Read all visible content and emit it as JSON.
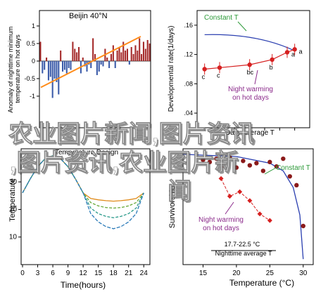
{
  "colors": {
    "bar": "#a52a2a",
    "bar_negative": "#3b5ba9",
    "trend": "#ff8c1a",
    "red_series": "#d62020",
    "blue_curve": "#2b3fb0",
    "green_annot": "#2e9a3a",
    "purple_annot": "#8b2b8b",
    "watermark": "#ffffff",
    "watermark_shadow": "#444444"
  },
  "watermark": {
    "line1": "农业图片新闻,图片资讯",
    "line2": ",图片资讯,农业图片新",
    "line3": "闻"
  },
  "chart_data": [
    {
      "type": "bar",
      "title": "Beijin 40°N",
      "ylabel": "Anomaly of nighttime minimum temperature on hot days",
      "xlabel": "",
      "x_ticks": [],
      "y_tick_labels": [
        "1",
        "0.5",
        "0",
        "-0.5",
        "-1"
      ],
      "ylim": [
        -1.2,
        1.15
      ],
      "values": [
        0.55,
        -0.35,
        -0.25,
        0.1,
        -0.55,
        -0.45,
        -1.05,
        -0.5,
        -0.6,
        -0.95,
        0.3,
        -0.3,
        -0.25,
        -0.35,
        -0.2,
        -0.25,
        0.55,
        0.35,
        0.25,
        0.4,
        -0.35,
        0.1,
        -0.15,
        -0.3,
        -0.1,
        -0.2,
        0.65,
        0.2,
        -0.4,
        -0.3,
        -0.1,
        -0.15,
        0.35,
        0.1,
        -0.2,
        0.2,
        0.45,
        -0.2,
        0.3,
        0.4,
        0.25,
        0.55,
        0.3,
        0.35,
        -0.1,
        0.4,
        0.2,
        0.45,
        0.3,
        0.65,
        0.2,
        0.55,
        0.35,
        0.6,
        0.5
      ],
      "trend": [
        -0.75,
        0.7
      ]
    },
    {
      "type": "line",
      "title": "",
      "ylabel": "Developmental rate(1/days)",
      "xlabel": "Daily average T",
      "y_tick_labels": [
        ".16",
        ".12",
        ".08",
        ".04"
      ],
      "ylim": [
        0.02,
        0.18
      ],
      "x": [
        12,
        14,
        16,
        18,
        20,
        22,
        24
      ],
      "series": [
        {
          "name": "Constant T",
          "x": [
            12,
            17,
            24
          ],
          "values": [
            0.147,
            0.146,
            0.125
          ]
        },
        {
          "name": "Night warming on hot days",
          "x": [
            12,
            14,
            18,
            21,
            23,
            24
          ],
          "values": [
            0.1,
            0.102,
            0.106,
            0.113,
            0.123,
            0.127
          ],
          "point_labels": [
            "c",
            "c",
            "bc",
            "b",
            "a",
            "a"
          ]
        }
      ],
      "annotations": [
        "Constant T",
        "Night warming",
        "on hot days"
      ]
    },
    {
      "type": "line",
      "title": "Temperature Design",
      "ylabel": "Temperature",
      "xlabel": "Time(hours)",
      "x_tick_labels": [
        "0",
        "3",
        "6",
        "9",
        "12",
        "15",
        "18",
        "21",
        "24"
      ],
      "y_tick_labels": [
        "30",
        "20",
        "10"
      ],
      "ylim": [
        0,
        42
      ],
      "x": [
        0,
        1.5,
        3,
        4.5,
        6,
        7.5,
        9,
        10.5,
        12,
        13.5,
        15,
        16.5,
        18,
        19.5,
        21,
        22.5,
        24
      ],
      "series": [
        {
          "values": [
            26,
            31,
            35.5,
            38.5,
            39.5,
            38.5,
            35.5,
            31,
            26,
            24,
            23.5,
            23.2,
            23,
            23.2,
            23.5,
            24,
            26
          ]
        },
        {
          "values": [
            26,
            31,
            35.5,
            38.5,
            39.5,
            38.5,
            35.5,
            31,
            26,
            22.5,
            21.3,
            20.7,
            20.5,
            20.7,
            21.3,
            22.5,
            26
          ]
        },
        {
          "values": [
            26,
            31,
            35.5,
            38.5,
            39.5,
            38.5,
            35.5,
            31,
            26,
            20.5,
            18.5,
            17.5,
            17,
            17.5,
            18.5,
            20.5,
            26
          ]
        },
        {
          "values": [
            26,
            31,
            35.5,
            38.5,
            39.5,
            38.5,
            35.5,
            31,
            26,
            18.5,
            15.5,
            13.8,
            13,
            13.8,
            15.5,
            18.5,
            26
          ]
        }
      ]
    },
    {
      "type": "scatter",
      "title": "",
      "ylabel": "Survivorship",
      "xlabel": "Temperature (°C)",
      "x_tick_labels": [
        "15",
        "20",
        "25",
        "30"
      ],
      "xlim": [
        12,
        31
      ],
      "ylim": [
        0,
        1.05
      ],
      "series": [
        {
          "name": "Constant T",
          "x": [
            15,
            16,
            17,
            18,
            19,
            20,
            21,
            22,
            23,
            24,
            25,
            26,
            27,
            28,
            29,
            30
          ],
          "values": [
            0.95,
            0.93,
            0.96,
            0.9,
            0.97,
            0.88,
            0.94,
            0.9,
            0.92,
            0.85,
            0.93,
            0.89,
            0.96,
            0.8,
            0.72,
            0.35
          ]
        },
        {
          "name": "Night warming on hot days",
          "x": [
            17.7,
            19,
            20.5,
            22,
            23.5,
            25
          ],
          "values": [
            0.78,
            0.62,
            0.66,
            0.58,
            0.46,
            0.4
          ]
        }
      ],
      "fit": {
        "x": [
          12,
          20,
          25,
          27,
          28.5,
          29.5,
          30
        ],
        "values": [
          1.0,
          0.98,
          0.92,
          0.85,
          0.7,
          0.45,
          0.05
        ]
      },
      "annotations": [
        "Constant T",
        "Night warming",
        "on hot days",
        "17.7-22.5 °C",
        "Nighttime average T"
      ]
    }
  ]
}
